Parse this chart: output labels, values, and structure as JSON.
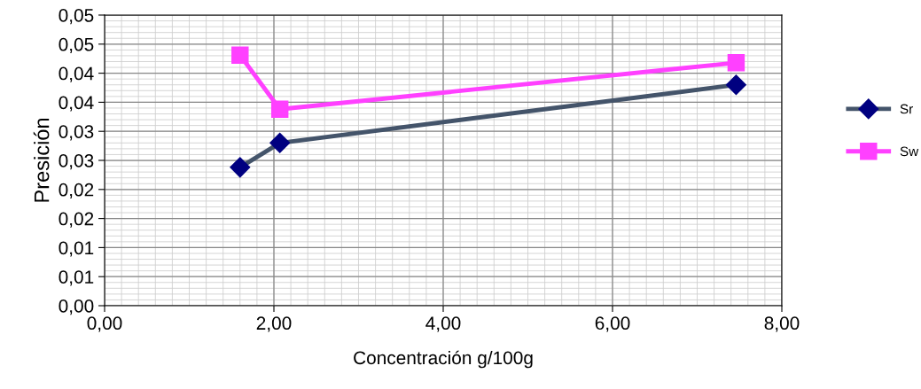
{
  "chart_data": {
    "type": "line",
    "xlabel": "Concentración g/100g",
    "ylabel": "Presición",
    "xlim": [
      0,
      8
    ],
    "xticks": [
      {
        "value": 0,
        "label": "0,00"
      },
      {
        "value": 2,
        "label": "2,00"
      },
      {
        "value": 4,
        "label": "4,00"
      },
      {
        "value": 6,
        "label": "6,00"
      },
      {
        "value": 8,
        "label": "8,00"
      }
    ],
    "ylim": [
      0,
      0.05
    ],
    "yticks": [
      {
        "value": 0,
        "label": "0,00"
      },
      {
        "value": 0.005,
        "label": "0,01"
      },
      {
        "value": 0.01,
        "label": "0,01"
      },
      {
        "value": 0.015,
        "label": "0,02"
      },
      {
        "value": 0.02,
        "label": "0,02"
      },
      {
        "value": 0.025,
        "label": "0,03"
      },
      {
        "value": 0.03,
        "label": "0,03"
      },
      {
        "value": 0.035,
        "label": "0,04"
      },
      {
        "value": 0.04,
        "label": "0,04"
      },
      {
        "value": 0.045,
        "label": "0,05"
      },
      {
        "value": 0.05,
        "label": "0,05"
      }
    ],
    "grid": true,
    "legend": "right",
    "line_style": "solid",
    "series": [
      {
        "name": "Sr",
        "color": "#44546a",
        "marker": "diamond",
        "x": [
          1.6,
          2.07,
          7.46
        ],
        "values": [
          0.0238,
          0.028,
          0.038
        ]
      },
      {
        "name": "Sw",
        "color": "#ff40ff",
        "marker": "square",
        "x": [
          1.6,
          2.07,
          7.46
        ],
        "values": [
          0.0431,
          0.0338,
          0.0418
        ]
      }
    ]
  }
}
